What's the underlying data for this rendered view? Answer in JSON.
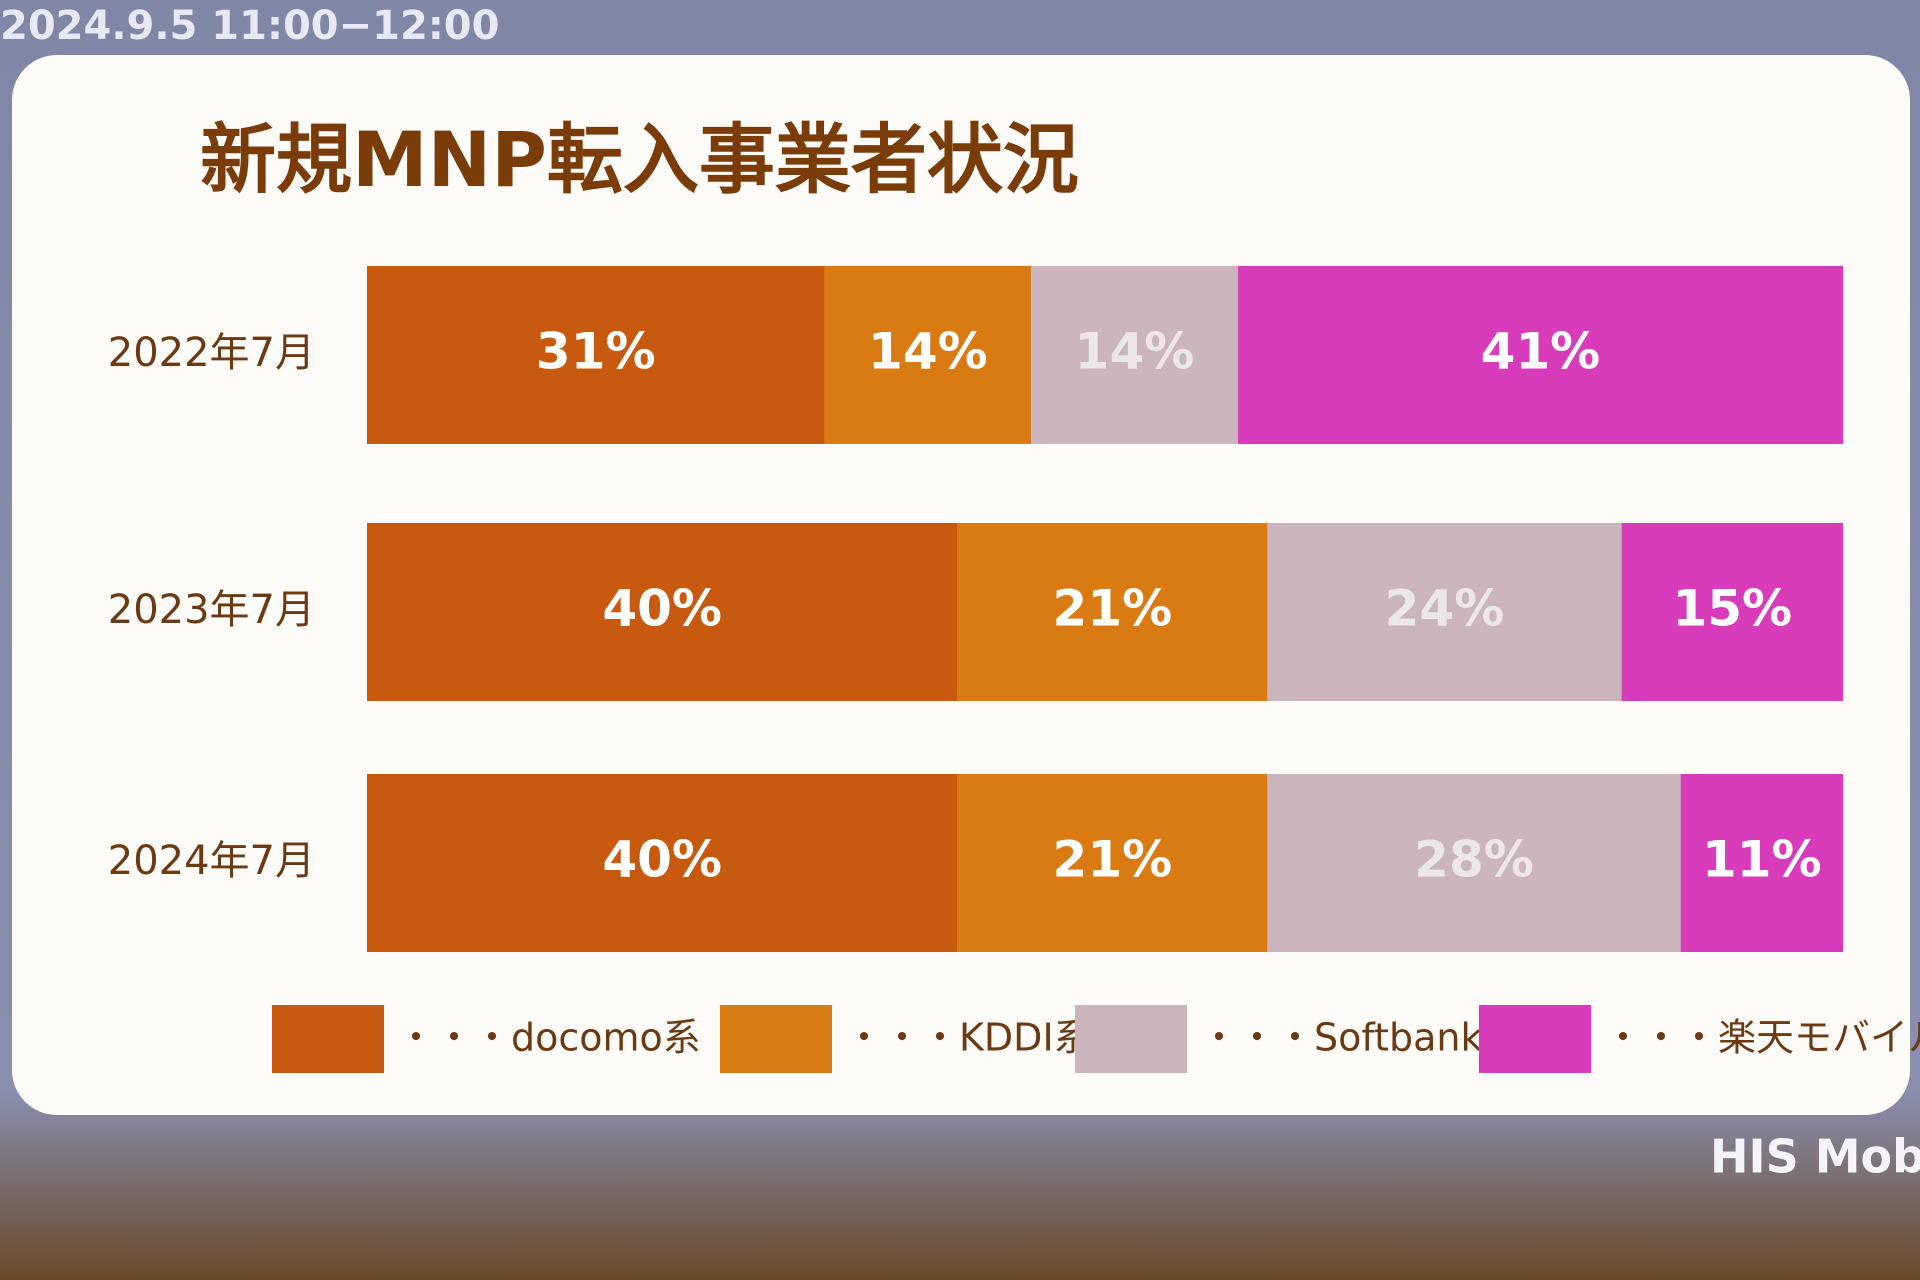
{
  "screen": {
    "timestamp": "2024.9.5 11:00−12:00",
    "logo": "HIS Mobi"
  },
  "chart_data": {
    "type": "stacked-bar-horizontal",
    "title": "新規MNP転入事業者状況",
    "categories": [
      "2022年7月",
      "2023年7月",
      "2024年7月"
    ],
    "xlim": [
      0,
      100
    ],
    "series": [
      {
        "name": "・・・docomo系",
        "color": "#c85a10",
        "label_color": "#ffffff",
        "values": [
          31,
          40,
          40
        ],
        "value_labels": [
          "31%",
          "40%",
          "40%"
        ]
      },
      {
        "name": "・・・KDDI系",
        "color": "#d97a12",
        "label_color": "#ffffff",
        "values": [
          14,
          21,
          21
        ],
        "value_labels": [
          "14%",
          "21%",
          "21%"
        ]
      },
      {
        "name": "・・・Softbank系",
        "color": "#c9b5bb",
        "label_color": "#ece6ea",
        "values": [
          14,
          24,
          28
        ],
        "value_labels": [
          "14%",
          "24%",
          "28%"
        ]
      },
      {
        "name": "・・・楽天モバイル",
        "color": "#d93cba",
        "label_color": "#ffffff",
        "values": [
          41,
          15,
          11
        ],
        "value_labels": [
          "41%",
          "15%",
          "11%"
        ]
      }
    ]
  }
}
